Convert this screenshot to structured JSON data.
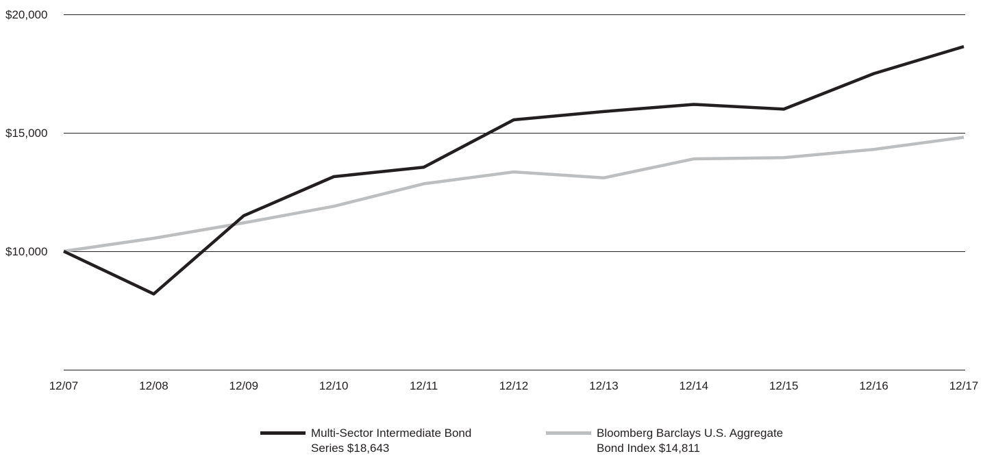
{
  "chart_data": {
    "type": "line",
    "x": [
      "12/07",
      "12/08",
      "12/09",
      "12/10",
      "12/11",
      "12/12",
      "12/13",
      "12/14",
      "12/15",
      "12/16",
      "12/17"
    ],
    "y_ticks": [
      "$10,000",
      "$15,000",
      "$20,000"
    ],
    "y_tick_values": [
      10000,
      15000,
      20000
    ],
    "ylim": [
      5000,
      20000
    ],
    "grid": true,
    "legend_position": "bottom-center",
    "series": [
      {
        "name": "Multi-Sector Intermediate Bond Series $18,643",
        "name_lines": [
          "Multi-Sector Intermediate Bond",
          "Series $18,643"
        ],
        "color": "#231f20",
        "values": [
          10000,
          8200,
          11500,
          13150,
          13550,
          15550,
          15900,
          16200,
          16000,
          17500,
          18643
        ]
      },
      {
        "name": "Bloomberg Barclays U.S. Aggregate Bond Index $14,811",
        "name_lines": [
          "Bloomberg Barclays U.S. Aggregate",
          "Bond Index $14,811"
        ],
        "color": "#bcbec0",
        "values": [
          10000,
          10550,
          11200,
          11900,
          12850,
          13350,
          13100,
          13900,
          13950,
          14300,
          14811
        ]
      }
    ]
  }
}
